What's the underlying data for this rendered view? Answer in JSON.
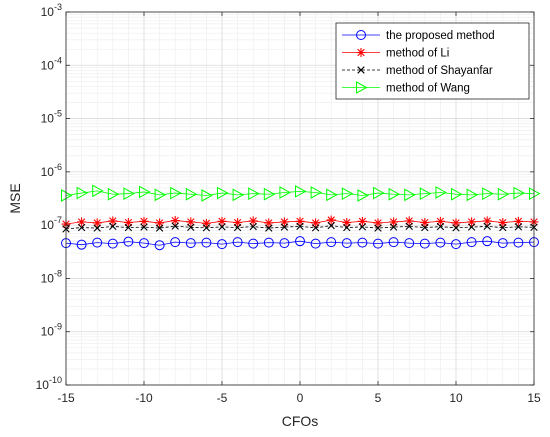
{
  "chart_data": {
    "type": "line",
    "title": "",
    "xlabel": "CFOs",
    "ylabel": "MSE",
    "xlim": [
      -15,
      15
    ],
    "ylim": [
      1e-10,
      0.001
    ],
    "yscale": "log",
    "grid": true,
    "minor_grid": true,
    "legend_position": "top-right",
    "x_ticks": [
      -15,
      -10,
      -5,
      0,
      5,
      10,
      15
    ],
    "x_tick_labels": [
      "-15",
      "-10",
      "-5",
      "0",
      "5",
      "10",
      "15"
    ],
    "y_ticks": [
      {
        "value": 1e-10,
        "base": "10",
        "exp": "-10"
      },
      {
        "value": 1e-09,
        "base": "10",
        "exp": "-9"
      },
      {
        "value": 1e-08,
        "base": "10",
        "exp": "-8"
      },
      {
        "value": 1e-07,
        "base": "10",
        "exp": "-7"
      },
      {
        "value": 1e-06,
        "base": "10",
        "exp": "-6"
      },
      {
        "value": 1e-05,
        "base": "10",
        "exp": "-5"
      },
      {
        "value": 0.0001,
        "base": "10",
        "exp": "-4"
      },
      {
        "value": 0.001,
        "base": "10",
        "exp": "-3"
      }
    ],
    "x": [
      -15,
      -14,
      -13,
      -12,
      -11,
      -10,
      -9,
      -8,
      -7,
      -6,
      -5,
      -4,
      -3,
      -2,
      -1,
      0,
      1,
      2,
      3,
      4,
      5,
      6,
      7,
      8,
      9,
      10,
      11,
      12,
      13,
      14,
      15
    ],
    "series": [
      {
        "name": "the proposed method",
        "color": "#0000ff",
        "marker": "circle",
        "line": "solid",
        "values": [
          4.6e-08,
          4.3e-08,
          4.7e-08,
          4.5e-08,
          4.9e-08,
          4.6e-08,
          4.2e-08,
          4.8e-08,
          4.6e-08,
          4.7e-08,
          4.4e-08,
          4.8e-08,
          4.5e-08,
          4.7e-08,
          4.6e-08,
          5e-08,
          4.5e-08,
          4.8e-08,
          4.6e-08,
          4.7e-08,
          4.5e-08,
          4.8e-08,
          4.6e-08,
          4.5e-08,
          4.7e-08,
          4.4e-08,
          4.8e-08,
          5e-08,
          4.6e-08,
          4.7e-08,
          4.8e-08
        ]
      },
      {
        "name": "method of Li",
        "color": "#ff0000",
        "marker": "star",
        "line": "solid",
        "values": [
          1.05e-07,
          1.15e-07,
          1.1e-07,
          1.2e-07,
          1.12e-07,
          1.18e-07,
          1.1e-07,
          1.22e-07,
          1.15e-07,
          1.08e-07,
          1.18e-07,
          1.12e-07,
          1.2e-07,
          1.1e-07,
          1.15e-07,
          1.18e-07,
          1.1e-07,
          1.25e-07,
          1.12e-07,
          1.18e-07,
          1.1e-07,
          1.15e-07,
          1.2e-07,
          1.12e-07,
          1.18e-07,
          1.1e-07,
          1.15e-07,
          1.2e-07,
          1.12e-07,
          1.18e-07,
          1.15e-07
        ]
      },
      {
        "name": "method of Shayanfar",
        "color": "#000000",
        "marker": "x",
        "line": "dashed",
        "values": [
          8.5e-08,
          9e-08,
          8.8e-08,
          9.5e-08,
          9e-08,
          9.2e-08,
          8.8e-08,
          9.6e-08,
          9.1e-08,
          8.9e-08,
          9.3e-08,
          9e-08,
          9.4e-08,
          8.8e-08,
          9.2e-08,
          9.5e-08,
          8.9e-08,
          9.8e-08,
          9e-08,
          9.3e-08,
          8.8e-08,
          9.2e-08,
          9.5e-08,
          9e-08,
          9.4e-08,
          8.9e-08,
          9.2e-08,
          9.5e-08,
          9e-08,
          9.3e-08,
          9.1e-08
        ]
      },
      {
        "name": "method of Wang",
        "color": "#00ff00",
        "marker": "triangle-right",
        "line": "solid",
        "values": [
          3.6e-07,
          4e-07,
          4.4e-07,
          3.8e-07,
          3.9e-07,
          4.2e-07,
          3.7e-07,
          4e-07,
          3.8e-07,
          3.6e-07,
          4e-07,
          3.7e-07,
          3.9e-07,
          3.8e-07,
          4.1e-07,
          4.3e-07,
          4.1e-07,
          3.7e-07,
          3.9e-07,
          3.6e-07,
          4e-07,
          3.8e-07,
          3.7e-07,
          3.9e-07,
          4.1e-07,
          3.8e-07,
          3.7e-07,
          3.9e-07,
          3.8e-07,
          4e-07,
          3.9e-07
        ]
      }
    ]
  }
}
